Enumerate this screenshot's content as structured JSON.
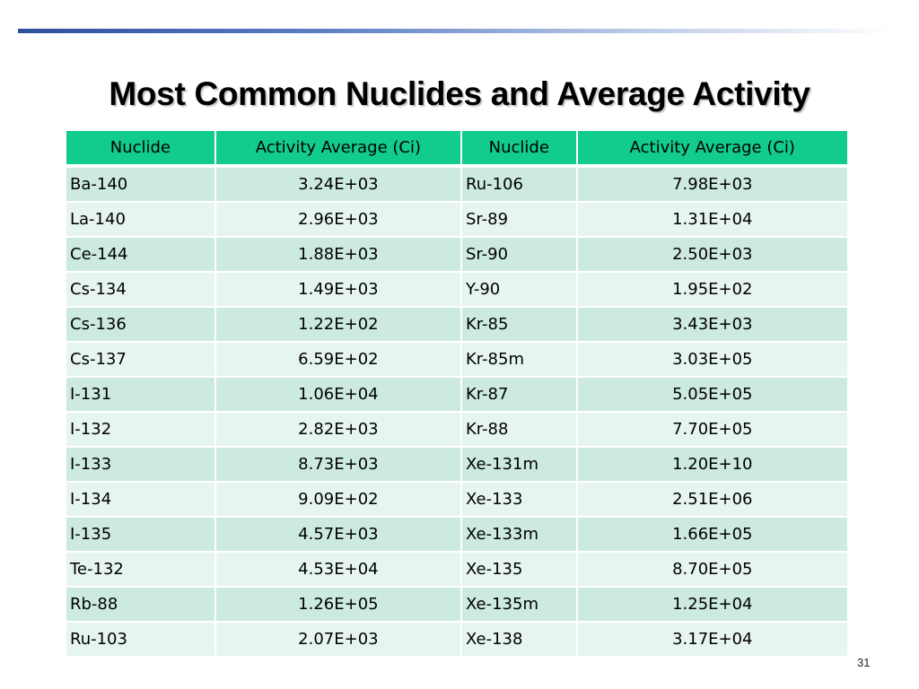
{
  "slide": {
    "title": "Most Common Nuclides and Average Activity",
    "page_number": "31"
  },
  "table": {
    "headers": [
      "Nuclide",
      "Activity Average (Ci)",
      "Nuclide",
      "Activity Average (Ci)"
    ],
    "rows": [
      [
        "Ba-140",
        "3.24E+03",
        "Ru-106",
        "7.98E+03"
      ],
      [
        "La-140",
        "2.96E+03",
        "Sr-89",
        "1.31E+04"
      ],
      [
        "Ce-144",
        "1.88E+03",
        "Sr-90",
        "2.50E+03"
      ],
      [
        "Cs-134",
        "1.49E+03",
        "Y-90",
        "1.95E+02"
      ],
      [
        "Cs-136",
        "1.22E+02",
        "Kr-85",
        "3.43E+03"
      ],
      [
        "Cs-137",
        "6.59E+02",
        "Kr-85m",
        "3.03E+05"
      ],
      [
        "I-131",
        "1.06E+04",
        "Kr-87",
        "5.05E+05"
      ],
      [
        "I-132",
        "2.82E+03",
        "Kr-88",
        "7.70E+05"
      ],
      [
        "I-133",
        "8.73E+03",
        "Xe-131m",
        "1.20E+10"
      ],
      [
        "I-134",
        "9.09E+02",
        "Xe-133",
        "2.51E+06"
      ],
      [
        "I-135",
        "4.57E+03",
        "Xe-133m",
        "1.66E+05"
      ],
      [
        "Te-132",
        "4.53E+04",
        "Xe-135",
        "8.70E+05"
      ],
      [
        "Rb-88",
        "1.26E+05",
        "Xe-135m",
        "1.25E+04"
      ],
      [
        "Ru-103",
        "2.07E+03",
        "Xe-138",
        "3.17E+04"
      ]
    ]
  },
  "colors": {
    "header_fill": "#11cc8c",
    "row_odd_fill": "#cceadf",
    "row_even_fill": "#e7f5ef",
    "title_rule": "#2c4f9e"
  }
}
